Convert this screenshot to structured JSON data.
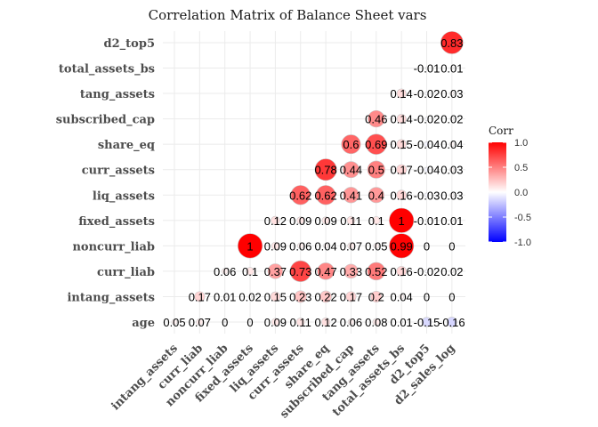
{
  "chart_data": {
    "type": "heatmap",
    "title": "Correlation Matrix of Balance Sheet vars",
    "x_labels": [
      "intang_assets",
      "curr_liab",
      "noncurr_liab",
      "fixed_assets",
      "liq_assets",
      "curr_assets",
      "share_eq",
      "subscribed_cap",
      "tang_assets",
      "total_assets_bs",
      "d2_top5",
      "d2_sales_log"
    ],
    "y_labels": [
      "age",
      "intang_assets",
      "curr_liab",
      "noncurr_liab",
      "fixed_assets",
      "liq_assets",
      "curr_assets",
      "share_eq",
      "subscribed_cap",
      "tang_assets",
      "total_assets_bs",
      "d2_top5"
    ],
    "cells": [
      {
        "x": "d2_sales_log",
        "y": "d2_top5",
        "value": 0.83,
        "label": "0.83"
      },
      {
        "x": "d2_top5",
        "y": "total_assets_bs",
        "value": -0.01,
        "label": "-0.01"
      },
      {
        "x": "d2_sales_log",
        "y": "total_assets_bs",
        "value": 0.01,
        "label": "0.01"
      },
      {
        "x": "total_assets_bs",
        "y": "tang_assets",
        "value": 0.14,
        "label": "0.14"
      },
      {
        "x": "d2_top5",
        "y": "tang_assets",
        "value": -0.02,
        "label": "-0.02"
      },
      {
        "x": "d2_sales_log",
        "y": "tang_assets",
        "value": 0.03,
        "label": "0.03"
      },
      {
        "x": "tang_assets",
        "y": "subscribed_cap",
        "value": 0.46,
        "label": "0.46"
      },
      {
        "x": "total_assets_bs",
        "y": "subscribed_cap",
        "value": 0.14,
        "label": "0.14"
      },
      {
        "x": "d2_top5",
        "y": "subscribed_cap",
        "value": -0.02,
        "label": "-0.02"
      },
      {
        "x": "d2_sales_log",
        "y": "subscribed_cap",
        "value": 0.02,
        "label": "0.02"
      },
      {
        "x": "subscribed_cap",
        "y": "share_eq",
        "value": 0.6,
        "label": "0.6"
      },
      {
        "x": "tang_assets",
        "y": "share_eq",
        "value": 0.69,
        "label": "0.69"
      },
      {
        "x": "total_assets_bs",
        "y": "share_eq",
        "value": 0.15,
        "label": "0.15"
      },
      {
        "x": "d2_top5",
        "y": "share_eq",
        "value": -0.04,
        "label": "-0.04"
      },
      {
        "x": "d2_sales_log",
        "y": "share_eq",
        "value": 0.04,
        "label": "0.04"
      },
      {
        "x": "share_eq",
        "y": "curr_assets",
        "value": 0.78,
        "label": "0.78"
      },
      {
        "x": "subscribed_cap",
        "y": "curr_assets",
        "value": 0.44,
        "label": "0.44"
      },
      {
        "x": "tang_assets",
        "y": "curr_assets",
        "value": 0.5,
        "label": "0.5"
      },
      {
        "x": "total_assets_bs",
        "y": "curr_assets",
        "value": 0.17,
        "label": "0.17"
      },
      {
        "x": "d2_top5",
        "y": "curr_assets",
        "value": -0.04,
        "label": "-0.04"
      },
      {
        "x": "d2_sales_log",
        "y": "curr_assets",
        "value": 0.03,
        "label": "0.03"
      },
      {
        "x": "curr_assets",
        "y": "liq_assets",
        "value": 0.62,
        "label": "0.62"
      },
      {
        "x": "share_eq",
        "y": "liq_assets",
        "value": 0.62,
        "label": "0.62"
      },
      {
        "x": "subscribed_cap",
        "y": "liq_assets",
        "value": 0.41,
        "label": "0.41"
      },
      {
        "x": "tang_assets",
        "y": "liq_assets",
        "value": 0.4,
        "label": "0.4"
      },
      {
        "x": "total_assets_bs",
        "y": "liq_assets",
        "value": 0.16,
        "label": "0.16"
      },
      {
        "x": "d2_top5",
        "y": "liq_assets",
        "value": -0.03,
        "label": "-0.03"
      },
      {
        "x": "d2_sales_log",
        "y": "liq_assets",
        "value": 0.03,
        "label": "0.03"
      },
      {
        "x": "liq_assets",
        "y": "fixed_assets",
        "value": 0.12,
        "label": "0.12"
      },
      {
        "x": "curr_assets",
        "y": "fixed_assets",
        "value": 0.09,
        "label": "0.09"
      },
      {
        "x": "share_eq",
        "y": "fixed_assets",
        "value": 0.09,
        "label": "0.09"
      },
      {
        "x": "subscribed_cap",
        "y": "fixed_assets",
        "value": 0.11,
        "label": "0.11"
      },
      {
        "x": "tang_assets",
        "y": "fixed_assets",
        "value": 0.1,
        "label": "0.1"
      },
      {
        "x": "total_assets_bs",
        "y": "fixed_assets",
        "value": 1,
        "label": "1"
      },
      {
        "x": "d2_top5",
        "y": "fixed_assets",
        "value": -0.01,
        "label": "-0.01"
      },
      {
        "x": "d2_sales_log",
        "y": "fixed_assets",
        "value": 0.01,
        "label": "0.01"
      },
      {
        "x": "fixed_assets",
        "y": "noncurr_liab",
        "value": 1,
        "label": "1"
      },
      {
        "x": "liq_assets",
        "y": "noncurr_liab",
        "value": 0.09,
        "label": "0.09"
      },
      {
        "x": "curr_assets",
        "y": "noncurr_liab",
        "value": 0.06,
        "label": "0.06"
      },
      {
        "x": "share_eq",
        "y": "noncurr_liab",
        "value": 0.04,
        "label": "0.04"
      },
      {
        "x": "subscribed_cap",
        "y": "noncurr_liab",
        "value": 0.07,
        "label": "0.07"
      },
      {
        "x": "tang_assets",
        "y": "noncurr_liab",
        "value": 0.05,
        "label": "0.05"
      },
      {
        "x": "total_assets_bs",
        "y": "noncurr_liab",
        "value": 0.99,
        "label": "0.99"
      },
      {
        "x": "d2_top5",
        "y": "noncurr_liab",
        "value": 0,
        "label": "0"
      },
      {
        "x": "d2_sales_log",
        "y": "noncurr_liab",
        "value": 0,
        "label": "0"
      },
      {
        "x": "noncurr_liab",
        "y": "curr_liab",
        "value": 0.06,
        "label": "0.06"
      },
      {
        "x": "fixed_assets",
        "y": "curr_liab",
        "value": 0.1,
        "label": "0.1"
      },
      {
        "x": "liq_assets",
        "y": "curr_liab",
        "value": 0.37,
        "label": "0.37"
      },
      {
        "x": "curr_assets",
        "y": "curr_liab",
        "value": 0.73,
        "label": "0.73"
      },
      {
        "x": "share_eq",
        "y": "curr_liab",
        "value": 0.47,
        "label": "0.47"
      },
      {
        "x": "subscribed_cap",
        "y": "curr_liab",
        "value": 0.33,
        "label": "0.33"
      },
      {
        "x": "tang_assets",
        "y": "curr_liab",
        "value": 0.52,
        "label": "0.52"
      },
      {
        "x": "total_assets_bs",
        "y": "curr_liab",
        "value": 0.16,
        "label": "0.16"
      },
      {
        "x": "d2_top5",
        "y": "curr_liab",
        "value": -0.02,
        "label": "-0.02"
      },
      {
        "x": "d2_sales_log",
        "y": "curr_liab",
        "value": 0.02,
        "label": "0.02"
      },
      {
        "x": "curr_liab",
        "y": "intang_assets",
        "value": 0.17,
        "label": "0.17"
      },
      {
        "x": "noncurr_liab",
        "y": "intang_assets",
        "value": 0.01,
        "label": "0.01"
      },
      {
        "x": "fixed_assets",
        "y": "intang_assets",
        "value": 0.02,
        "label": "0.02"
      },
      {
        "x": "liq_assets",
        "y": "intang_assets",
        "value": 0.15,
        "label": "0.15"
      },
      {
        "x": "curr_assets",
        "y": "intang_assets",
        "value": 0.23,
        "label": "0.23"
      },
      {
        "x": "share_eq",
        "y": "intang_assets",
        "value": 0.22,
        "label": "0.22"
      },
      {
        "x": "subscribed_cap",
        "y": "intang_assets",
        "value": 0.17,
        "label": "0.17"
      },
      {
        "x": "tang_assets",
        "y": "intang_assets",
        "value": 0.2,
        "label": "0.2"
      },
      {
        "x": "total_assets_bs",
        "y": "intang_assets",
        "value": 0.04,
        "label": "0.04"
      },
      {
        "x": "d2_top5",
        "y": "intang_assets",
        "value": 0,
        "label": "0"
      },
      {
        "x": "d2_sales_log",
        "y": "intang_assets",
        "value": 0,
        "label": "0"
      },
      {
        "x": "intang_assets",
        "y": "age",
        "value": 0.05,
        "label": "0.05"
      },
      {
        "x": "curr_liab",
        "y": "age",
        "value": 0.07,
        "label": "0.07"
      },
      {
        "x": "noncurr_liab",
        "y": "age",
        "value": 0,
        "label": "0"
      },
      {
        "x": "fixed_assets",
        "y": "age",
        "value": 0,
        "label": "0"
      },
      {
        "x": "liq_assets",
        "y": "age",
        "value": 0.09,
        "label": "0.09"
      },
      {
        "x": "curr_assets",
        "y": "age",
        "value": 0.11,
        "label": "0.11"
      },
      {
        "x": "share_eq",
        "y": "age",
        "value": 0.12,
        "label": "0.12"
      },
      {
        "x": "subscribed_cap",
        "y": "age",
        "value": 0.06,
        "label": "0.06"
      },
      {
        "x": "tang_assets",
        "y": "age",
        "value": 0.08,
        "label": "0.08"
      },
      {
        "x": "total_assets_bs",
        "y": "age",
        "value": 0.01,
        "label": "0.01"
      },
      {
        "x": "d2_top5",
        "y": "age",
        "value": -0.15,
        "label": "-0.15"
      },
      {
        "x": "d2_sales_log",
        "y": "age",
        "value": -0.16,
        "label": "-0.16"
      }
    ],
    "legend": {
      "title": "Corr",
      "ticks": [
        "1.0",
        "0.5",
        "0.0",
        "-0.5",
        "-1.0"
      ],
      "tick_values": [
        1.0,
        0.5,
        0.0,
        -0.5,
        -1.0
      ],
      "range": [
        -1,
        1
      ],
      "placement": "right"
    },
    "colors": {
      "high": "#ff0000",
      "mid": "#ffffff",
      "low": "#0000ff"
    },
    "grid": true
  }
}
